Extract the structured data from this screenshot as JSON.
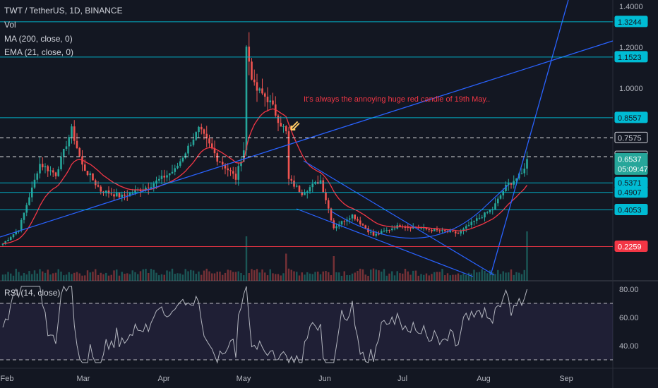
{
  "legend": {
    "symbol": "TWT / TetherUS, 1D, BINANCE",
    "vol": "Vol",
    "ma": "MA (200, close, 0)",
    "ema": "EMA (21, close, 0)",
    "rsi": "RSI (14, close)"
  },
  "annotation": "It's always the annoying huge red candle of 19th May..",
  "arrow_glyph": "⇙",
  "colors": {
    "background": "#131722",
    "up": "#26a69a",
    "down": "#ef5350",
    "ema": "#f23645",
    "trendline": "#2962ff",
    "hline": "#00bcd4",
    "dashed": "#ffffff",
    "support_red": "#f23645",
    "rsi_line": "#b2b5be",
    "rsi_band": "#7e57c2"
  },
  "chart_data": {
    "type": "candlestick",
    "price_axis_ticks": [
      "1.4000",
      "1.2000",
      "1.0000"
    ],
    "price_levels": [
      {
        "label": "1.3244",
        "value": 1.3244,
        "style": "hline"
      },
      {
        "label": "1.1523",
        "value": 1.1523,
        "style": "hline"
      },
      {
        "label": "0.8557",
        "value": 0.8557,
        "style": "hline"
      },
      {
        "label": "0.7575",
        "value": 0.7575,
        "style": "dashed"
      },
      {
        "label": "0.6650",
        "value": 0.665,
        "style": "dashed"
      },
      {
        "label": "0.6537",
        "value": 0.6537,
        "style": "current",
        "sub": "05:09:47"
      },
      {
        "label": "0.5371",
        "value": 0.5371,
        "style": "hline"
      },
      {
        "label": "0.4907",
        "value": 0.4907,
        "style": "hline"
      },
      {
        "label": "0.4053",
        "value": 0.4053,
        "style": "hline"
      },
      {
        "label": "0.2259",
        "value": 0.2259,
        "style": "support"
      }
    ],
    "time_labels": [
      "Feb",
      "Mar",
      "Apr",
      "May",
      "Jun",
      "Jul",
      "Aug",
      "Sep"
    ],
    "rsi_axis_ticks": [
      "80.00",
      "60.00",
      "40.00"
    ],
    "rsi_bands": [
      70,
      30
    ],
    "rsi_current": 80.0,
    "close_anchors": [
      [
        0,
        0.24
      ],
      [
        6,
        0.31
      ],
      [
        14,
        0.63
      ],
      [
        20,
        0.58
      ],
      [
        26,
        0.8
      ],
      [
        30,
        0.62
      ],
      [
        37,
        0.5
      ],
      [
        45,
        0.47
      ],
      [
        55,
        0.52
      ],
      [
        65,
        0.6
      ],
      [
        74,
        0.8
      ],
      [
        81,
        0.66
      ],
      [
        88,
        0.56
      ],
      [
        91,
        0.7
      ],
      [
        92,
        1.2
      ],
      [
        95,
        1.0
      ],
      [
        100,
        0.95
      ],
      [
        107,
        0.78
      ],
      [
        108,
        0.55
      ],
      [
        113,
        0.49
      ],
      [
        120,
        0.55
      ],
      [
        125,
        0.32
      ],
      [
        132,
        0.38
      ],
      [
        140,
        0.28
      ],
      [
        150,
        0.33
      ],
      [
        160,
        0.31
      ],
      [
        172,
        0.29
      ],
      [
        178,
        0.35
      ],
      [
        185,
        0.41
      ],
      [
        190,
        0.52
      ],
      [
        196,
        0.58
      ],
      [
        198,
        0.6537
      ]
    ],
    "volume_spikes": [
      [
        92,
        0.9
      ],
      [
        107,
        0.55
      ],
      [
        125,
        0.5
      ],
      [
        198,
        1.0
      ]
    ]
  }
}
